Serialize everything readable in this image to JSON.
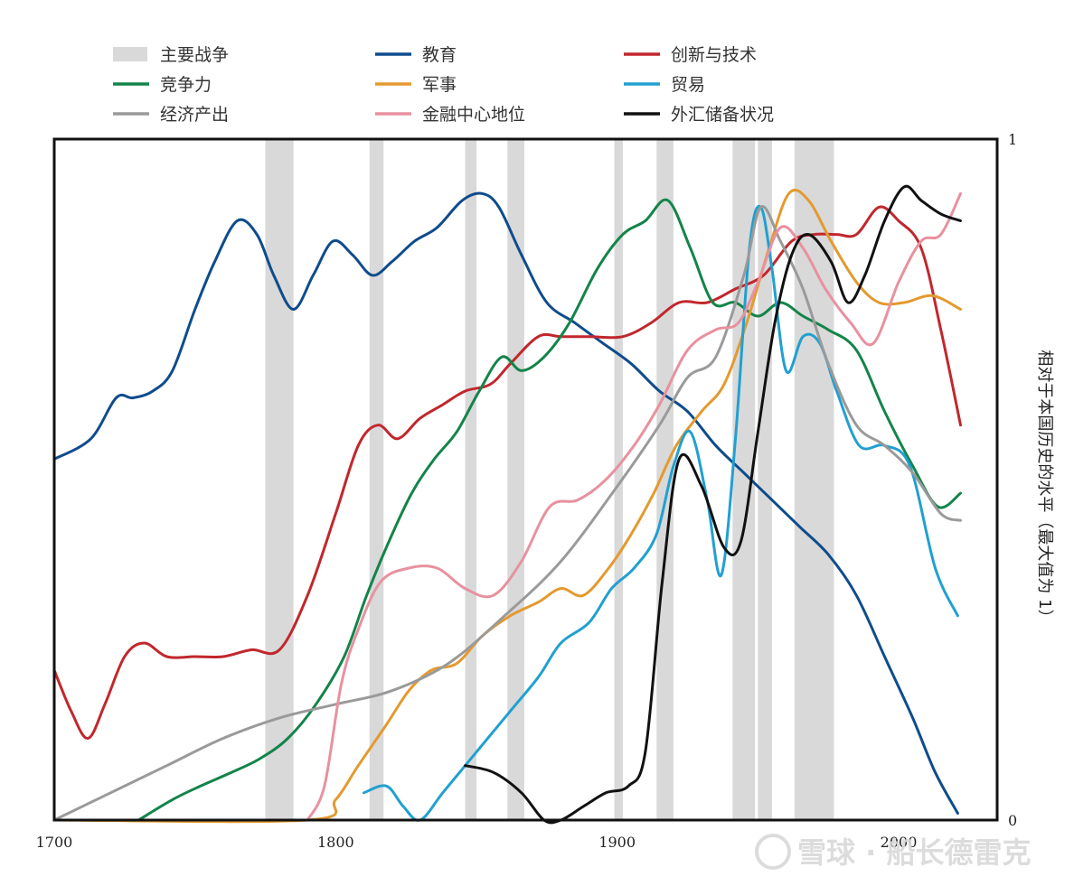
{
  "chart_data": {
    "type": "line",
    "title": "",
    "xlabel": "",
    "ylabel": "相对于本国历史的水平（最大值为 1）",
    "xlim": [
      1700,
      2035
    ],
    "ylim": [
      0,
      1
    ],
    "x_ticks": [
      "1700",
      "1800",
      "1900",
      "2000"
    ],
    "y_ticks": [
      "0",
      "1"
    ],
    "grid": false,
    "legend_position": "top",
    "war_label": "主要战争",
    "war_color": "#d9d9d9",
    "wars": [
      [
        1775,
        1785
      ],
      [
        1812,
        1817
      ],
      [
        1846,
        1850
      ],
      [
        1861,
        1867
      ],
      [
        1899,
        1902
      ],
      [
        1914,
        1920
      ],
      [
        1941,
        1949
      ],
      [
        1950,
        1955
      ],
      [
        1963,
        1977
      ]
    ],
    "series": [
      {
        "name": "教育",
        "color": "#0f4c8c",
        "points": [
          [
            1700,
            0.53
          ],
          [
            1713,
            0.56
          ],
          [
            1722,
            0.62
          ],
          [
            1728,
            0.62
          ],
          [
            1735,
            0.63
          ],
          [
            1742,
            0.66
          ],
          [
            1750,
            0.75
          ],
          [
            1757,
            0.82
          ],
          [
            1765,
            0.88
          ],
          [
            1772,
            0.86
          ],
          [
            1778,
            0.8
          ],
          [
            1785,
            0.75
          ],
          [
            1792,
            0.8
          ],
          [
            1799,
            0.85
          ],
          [
            1806,
            0.83
          ],
          [
            1813,
            0.8
          ],
          [
            1820,
            0.82
          ],
          [
            1828,
            0.85
          ],
          [
            1836,
            0.87
          ],
          [
            1845,
            0.91
          ],
          [
            1852,
            0.92
          ],
          [
            1858,
            0.9
          ],
          [
            1866,
            0.83
          ],
          [
            1875,
            0.76
          ],
          [
            1885,
            0.73
          ],
          [
            1895,
            0.7
          ],
          [
            1905,
            0.67
          ],
          [
            1915,
            0.63
          ],
          [
            1925,
            0.6
          ],
          [
            1935,
            0.55
          ],
          [
            1945,
            0.51
          ],
          [
            1955,
            0.47
          ],
          [
            1965,
            0.43
          ],
          [
            1975,
            0.39
          ],
          [
            1985,
            0.33
          ],
          [
            1995,
            0.24
          ],
          [
            2005,
            0.15
          ],
          [
            2013,
            0.07
          ],
          [
            2021,
            0.01
          ]
        ]
      },
      {
        "name": "创新与技术",
        "color": "#c1272d",
        "points": [
          [
            1700,
            0.22
          ],
          [
            1706,
            0.16
          ],
          [
            1712,
            0.12
          ],
          [
            1718,
            0.17
          ],
          [
            1725,
            0.24
          ],
          [
            1732,
            0.26
          ],
          [
            1740,
            0.24
          ],
          [
            1750,
            0.24
          ],
          [
            1760,
            0.24
          ],
          [
            1770,
            0.25
          ],
          [
            1780,
            0.25
          ],
          [
            1790,
            0.33
          ],
          [
            1800,
            0.45
          ],
          [
            1808,
            0.55
          ],
          [
            1815,
            0.58
          ],
          [
            1822,
            0.56
          ],
          [
            1830,
            0.59
          ],
          [
            1838,
            0.61
          ],
          [
            1846,
            0.63
          ],
          [
            1855,
            0.64
          ],
          [
            1862,
            0.67
          ],
          [
            1872,
            0.71
          ],
          [
            1880,
            0.71
          ],
          [
            1890,
            0.71
          ],
          [
            1902,
            0.71
          ],
          [
            1912,
            0.73
          ],
          [
            1922,
            0.76
          ],
          [
            1932,
            0.76
          ],
          [
            1942,
            0.78
          ],
          [
            1952,
            0.8
          ],
          [
            1962,
            0.85
          ],
          [
            1970,
            0.86
          ],
          [
            1978,
            0.86
          ],
          [
            1985,
            0.86
          ],
          [
            1993,
            0.9
          ],
          [
            2000,
            0.88
          ],
          [
            2008,
            0.84
          ],
          [
            2015,
            0.72
          ],
          [
            2022,
            0.58
          ]
        ]
      },
      {
        "name": "竞争力",
        "color": "#13844a",
        "points": [
          [
            1730,
            0.0
          ],
          [
            1742,
            0.03
          ],
          [
            1752,
            0.05
          ],
          [
            1763,
            0.07
          ],
          [
            1773,
            0.09
          ],
          [
            1783,
            0.12
          ],
          [
            1793,
            0.17
          ],
          [
            1803,
            0.24
          ],
          [
            1811,
            0.33
          ],
          [
            1819,
            0.41
          ],
          [
            1827,
            0.48
          ],
          [
            1835,
            0.53
          ],
          [
            1843,
            0.57
          ],
          [
            1851,
            0.63
          ],
          [
            1859,
            0.68
          ],
          [
            1866,
            0.66
          ],
          [
            1874,
            0.68
          ],
          [
            1883,
            0.73
          ],
          [
            1893,
            0.81
          ],
          [
            1902,
            0.86
          ],
          [
            1910,
            0.88
          ],
          [
            1918,
            0.91
          ],
          [
            1926,
            0.84
          ],
          [
            1934,
            0.76
          ],
          [
            1942,
            0.76
          ],
          [
            1950,
            0.74
          ],
          [
            1958,
            0.76
          ],
          [
            1966,
            0.74
          ],
          [
            1975,
            0.72
          ],
          [
            1985,
            0.69
          ],
          [
            1995,
            0.6
          ],
          [
            2005,
            0.52
          ],
          [
            2014,
            0.46
          ],
          [
            2022,
            0.48
          ]
        ]
      },
      {
        "name": "军事",
        "color": "#e39a2f",
        "points": [
          [
            1700,
            0.0
          ],
          [
            1790,
            0.0
          ],
          [
            1800,
            0.03
          ],
          [
            1808,
            0.08
          ],
          [
            1818,
            0.14
          ],
          [
            1826,
            0.19
          ],
          [
            1834,
            0.22
          ],
          [
            1843,
            0.23
          ],
          [
            1852,
            0.27
          ],
          [
            1862,
            0.3
          ],
          [
            1872,
            0.32
          ],
          [
            1880,
            0.34
          ],
          [
            1888,
            0.33
          ],
          [
            1897,
            0.37
          ],
          [
            1905,
            0.42
          ],
          [
            1913,
            0.48
          ],
          [
            1921,
            0.55
          ],
          [
            1930,
            0.6
          ],
          [
            1938,
            0.64
          ],
          [
            1946,
            0.73
          ],
          [
            1954,
            0.84
          ],
          [
            1961,
            0.92
          ],
          [
            1968,
            0.91
          ],
          [
            1976,
            0.85
          ],
          [
            1985,
            0.79
          ],
          [
            1993,
            0.76
          ],
          [
            2002,
            0.76
          ],
          [
            2012,
            0.77
          ],
          [
            2022,
            0.75
          ]
        ]
      },
      {
        "name": "贸易",
        "color": "#21a0d0",
        "points": [
          [
            1810,
            0.04
          ],
          [
            1818,
            0.05
          ],
          [
            1824,
            0.02
          ],
          [
            1830,
            0.0
          ],
          [
            1838,
            0.04
          ],
          [
            1846,
            0.08
          ],
          [
            1854,
            0.12
          ],
          [
            1862,
            0.16
          ],
          [
            1872,
            0.21
          ],
          [
            1880,
            0.26
          ],
          [
            1890,
            0.29
          ],
          [
            1898,
            0.34
          ],
          [
            1906,
            0.37
          ],
          [
            1914,
            0.42
          ],
          [
            1920,
            0.52
          ],
          [
            1926,
            0.57
          ],
          [
            1932,
            0.47
          ],
          [
            1937,
            0.36
          ],
          [
            1942,
            0.56
          ],
          [
            1947,
            0.84
          ],
          [
            1951,
            0.9
          ],
          [
            1955,
            0.81
          ],
          [
            1960,
            0.66
          ],
          [
            1966,
            0.71
          ],
          [
            1972,
            0.7
          ],
          [
            1978,
            0.63
          ],
          [
            1986,
            0.55
          ],
          [
            1995,
            0.55
          ],
          [
            2004,
            0.52
          ],
          [
            2013,
            0.37
          ],
          [
            2021,
            0.3
          ]
        ]
      },
      {
        "name": "经济产出",
        "color": "#9a9a9a",
        "points": [
          [
            1700,
            0.0
          ],
          [
            1720,
            0.04
          ],
          [
            1740,
            0.08
          ],
          [
            1760,
            0.12
          ],
          [
            1780,
            0.15
          ],
          [
            1800,
            0.17
          ],
          [
            1820,
            0.19
          ],
          [
            1840,
            0.23
          ],
          [
            1860,
            0.3
          ],
          [
            1880,
            0.38
          ],
          [
            1900,
            0.49
          ],
          [
            1915,
            0.58
          ],
          [
            1925,
            0.65
          ],
          [
            1935,
            0.68
          ],
          [
            1945,
            0.8
          ],
          [
            1951,
            0.9
          ],
          [
            1958,
            0.85
          ],
          [
            1966,
            0.78
          ],
          [
            1975,
            0.67
          ],
          [
            1985,
            0.58
          ],
          [
            1995,
            0.55
          ],
          [
            2005,
            0.51
          ],
          [
            2015,
            0.45
          ],
          [
            2022,
            0.44
          ]
        ]
      },
      {
        "name": "金融中心地位",
        "color": "#e8919f",
        "points": [
          [
            1790,
            0.0
          ],
          [
            1796,
            0.05
          ],
          [
            1802,
            0.2
          ],
          [
            1808,
            0.28
          ],
          [
            1816,
            0.35
          ],
          [
            1826,
            0.37
          ],
          [
            1836,
            0.37
          ],
          [
            1846,
            0.34
          ],
          [
            1856,
            0.33
          ],
          [
            1866,
            0.38
          ],
          [
            1876,
            0.46
          ],
          [
            1886,
            0.47
          ],
          [
            1896,
            0.5
          ],
          [
            1906,
            0.55
          ],
          [
            1915,
            0.61
          ],
          [
            1925,
            0.69
          ],
          [
            1935,
            0.72
          ],
          [
            1943,
            0.73
          ],
          [
            1950,
            0.79
          ],
          [
            1958,
            0.87
          ],
          [
            1966,
            0.84
          ],
          [
            1974,
            0.78
          ],
          [
            1983,
            0.73
          ],
          [
            1991,
            0.7
          ],
          [
            2000,
            0.79
          ],
          [
            2008,
            0.85
          ],
          [
            2015,
            0.86
          ],
          [
            2022,
            0.92
          ]
        ]
      },
      {
        "name": "外汇储备状况",
        "color": "#111111",
        "points": [
          [
            1846,
            0.08
          ],
          [
            1856,
            0.07
          ],
          [
            1866,
            0.04
          ],
          [
            1874,
            0.0
          ],
          [
            1880,
            0.0
          ],
          [
            1888,
            0.02
          ],
          [
            1896,
            0.04
          ],
          [
            1904,
            0.05
          ],
          [
            1910,
            0.1
          ],
          [
            1916,
            0.35
          ],
          [
            1922,
            0.53
          ],
          [
            1930,
            0.49
          ],
          [
            1938,
            0.4
          ],
          [
            1944,
            0.41
          ],
          [
            1950,
            0.57
          ],
          [
            1956,
            0.73
          ],
          [
            1962,
            0.83
          ],
          [
            1968,
            0.86
          ],
          [
            1976,
            0.82
          ],
          [
            1982,
            0.76
          ],
          [
            1988,
            0.8
          ],
          [
            1995,
            0.88
          ],
          [
            2002,
            0.93
          ],
          [
            2008,
            0.91
          ],
          [
            2015,
            0.89
          ],
          [
            2022,
            0.88
          ]
        ]
      }
    ]
  }
}
